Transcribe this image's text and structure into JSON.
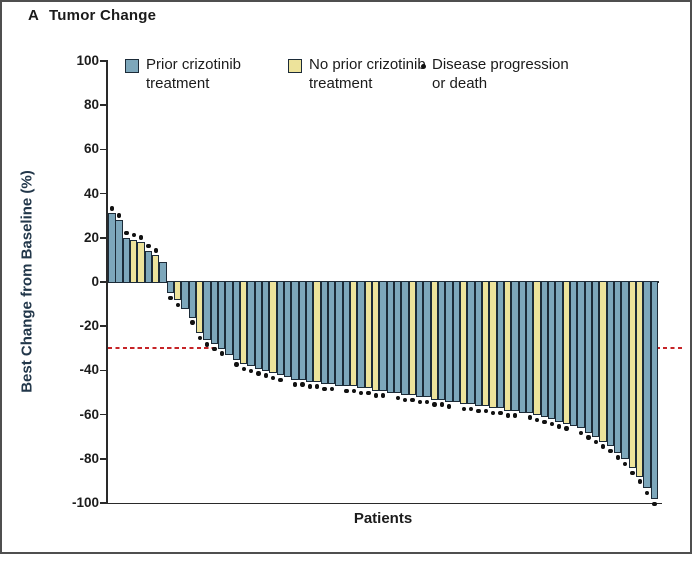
{
  "figure": {
    "panel_label": "A",
    "title": "Tumor Change",
    "x_axis_label": "Patients",
    "y_axis_label": "Best Change from Baseline (%)",
    "y_ticks": [
      100,
      80,
      60,
      40,
      20,
      0,
      -20,
      -40,
      -60,
      -80,
      -100
    ],
    "legend": [
      {
        "swatch": "prior",
        "label_line1": "Prior crizotinib",
        "label_line2": "treatment"
      },
      {
        "swatch": "no_prior",
        "label_line1": "No prior crizotinib",
        "label_line2": "treatment"
      },
      {
        "swatch": "dot",
        "label_line1": "Disease progression",
        "label_line2": "or death"
      }
    ],
    "colors": {
      "prior": "#7DA7BB",
      "no_prior": "#EDE39B",
      "bar_border": "#1C2B38",
      "reference_line": "#C62428",
      "axis": "#2A2A2A",
      "dot": "#111111"
    }
  },
  "chart_data": {
    "type": "bar",
    "title": "Tumor Change",
    "xlabel": "Patients",
    "ylabel": "Best Change from Baseline (%)",
    "ylim": [
      -100,
      100
    ],
    "y_tick_step": 20,
    "reference_line": -30,
    "grid": false,
    "legend_position": "top-inside",
    "groups": {
      "prior": "Prior crizotinib treatment",
      "no_prior": "No prior crizotinib treatment"
    },
    "dot_meaning": "Disease progression or death",
    "bars": [
      {
        "v": 31,
        "g": "prior",
        "d": true
      },
      {
        "v": 28,
        "g": "prior",
        "d": true
      },
      {
        "v": 20,
        "g": "prior",
        "d": true
      },
      {
        "v": 19,
        "g": "no_prior",
        "d": true
      },
      {
        "v": 18,
        "g": "no_prior",
        "d": true
      },
      {
        "v": 14,
        "g": "prior",
        "d": true
      },
      {
        "v": 12,
        "g": "no_prior",
        "d": true
      },
      {
        "v": 9,
        "g": "prior",
        "d": false
      },
      {
        "v": -5,
        "g": "prior",
        "d": true
      },
      {
        "v": -8,
        "g": "no_prior",
        "d": true
      },
      {
        "v": -12,
        "g": "prior",
        "d": false
      },
      {
        "v": -16,
        "g": "prior",
        "d": true
      },
      {
        "v": -23,
        "g": "no_prior",
        "d": true
      },
      {
        "v": -26,
        "g": "prior",
        "d": true
      },
      {
        "v": -28,
        "g": "prior",
        "d": true
      },
      {
        "v": -30,
        "g": "prior",
        "d": true
      },
      {
        "v": -33,
        "g": "prior",
        "d": false
      },
      {
        "v": -35,
        "g": "prior",
        "d": true
      },
      {
        "v": -37,
        "g": "no_prior",
        "d": true
      },
      {
        "v": -38,
        "g": "prior",
        "d": true
      },
      {
        "v": -39,
        "g": "prior",
        "d": true
      },
      {
        "v": -40,
        "g": "prior",
        "d": true
      },
      {
        "v": -41,
        "g": "no_prior",
        "d": true
      },
      {
        "v": -42,
        "g": "prior",
        "d": true
      },
      {
        "v": -43,
        "g": "prior",
        "d": false
      },
      {
        "v": -44,
        "g": "prior",
        "d": true
      },
      {
        "v": -44,
        "g": "prior",
        "d": true
      },
      {
        "v": -45,
        "g": "prior",
        "d": true
      },
      {
        "v": -45,
        "g": "no_prior",
        "d": true
      },
      {
        "v": -46,
        "g": "prior",
        "d": true
      },
      {
        "v": -46,
        "g": "prior",
        "d": true
      },
      {
        "v": -47,
        "g": "prior",
        "d": false
      },
      {
        "v": -47,
        "g": "prior",
        "d": true
      },
      {
        "v": -47,
        "g": "no_prior",
        "d": true
      },
      {
        "v": -48,
        "g": "prior",
        "d": true
      },
      {
        "v": -48,
        "g": "no_prior",
        "d": true
      },
      {
        "v": -49,
        "g": "no_prior",
        "d": true
      },
      {
        "v": -49,
        "g": "prior",
        "d": true
      },
      {
        "v": -50,
        "g": "prior",
        "d": false
      },
      {
        "v": -50,
        "g": "prior",
        "d": true
      },
      {
        "v": -51,
        "g": "prior",
        "d": true
      },
      {
        "v": -51,
        "g": "no_prior",
        "d": true
      },
      {
        "v": -52,
        "g": "prior",
        "d": true
      },
      {
        "v": -52,
        "g": "prior",
        "d": true
      },
      {
        "v": -53,
        "g": "no_prior",
        "d": true
      },
      {
        "v": -53,
        "g": "prior",
        "d": true
      },
      {
        "v": -54,
        "g": "prior",
        "d": true
      },
      {
        "v": -54,
        "g": "prior",
        "d": false
      },
      {
        "v": -55,
        "g": "no_prior",
        "d": true
      },
      {
        "v": -55,
        "g": "prior",
        "d": true
      },
      {
        "v": -56,
        "g": "prior",
        "d": true
      },
      {
        "v": -56,
        "g": "no_prior",
        "d": true
      },
      {
        "v": -57,
        "g": "no_prior",
        "d": true
      },
      {
        "v": -57,
        "g": "prior",
        "d": true
      },
      {
        "v": -58,
        "g": "no_prior",
        "d": true
      },
      {
        "v": -58,
        "g": "prior",
        "d": true
      },
      {
        "v": -59,
        "g": "prior",
        "d": false
      },
      {
        "v": -59,
        "g": "prior",
        "d": true
      },
      {
        "v": -60,
        "g": "no_prior",
        "d": true
      },
      {
        "v": -61,
        "g": "prior",
        "d": true
      },
      {
        "v": -62,
        "g": "prior",
        "d": true
      },
      {
        "v": -63,
        "g": "prior",
        "d": true
      },
      {
        "v": -64,
        "g": "no_prior",
        "d": true
      },
      {
        "v": -65,
        "g": "prior",
        "d": false
      },
      {
        "v": -66,
        "g": "prior",
        "d": true
      },
      {
        "v": -68,
        "g": "prior",
        "d": true
      },
      {
        "v": -70,
        "g": "prior",
        "d": true
      },
      {
        "v": -72,
        "g": "no_prior",
        "d": true
      },
      {
        "v": -74,
        "g": "prior",
        "d": true
      },
      {
        "v": -77,
        "g": "prior",
        "d": true
      },
      {
        "v": -80,
        "g": "prior",
        "d": true
      },
      {
        "v": -84,
        "g": "no_prior",
        "d": true
      },
      {
        "v": -88,
        "g": "no_prior",
        "d": true
      },
      {
        "v": -93,
        "g": "prior",
        "d": true
      },
      {
        "v": -98,
        "g": "prior",
        "d": true
      }
    ]
  }
}
